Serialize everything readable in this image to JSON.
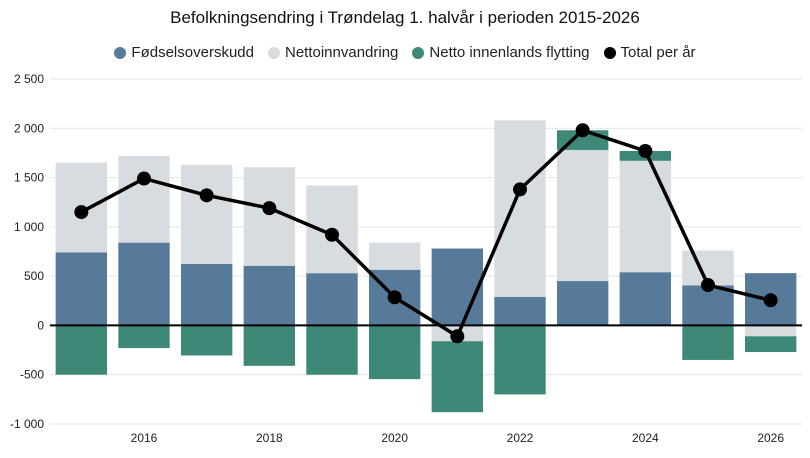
{
  "chart_data": {
    "type": "bar",
    "title": "Befolkningsendring i Trøndelag 1. halvår i perioden 2015-2026",
    "xlabel": "",
    "ylabel": "",
    "ylim": [
      -1000,
      2500
    ],
    "y_ticks": [
      2500,
      2000,
      1500,
      1000,
      500,
      0,
      -500,
      -1000
    ],
    "y_tick_labels": [
      "2 500",
      "2 000",
      "1 500",
      "1 000",
      "500",
      "0",
      "-500",
      "-1 000"
    ],
    "categories": [
      "2015",
      "2016",
      "2017",
      "2018",
      "2019",
      "2020",
      "2021",
      "2022",
      "2023",
      "2024",
      "2025",
      "2026"
    ],
    "x_tick_labels": [
      "",
      "2016",
      "",
      "2018",
      "",
      "2020",
      "",
      "2022",
      "",
      "2024",
      "",
      "2026"
    ],
    "stacked": true,
    "grid": true,
    "legend_position": "top",
    "series": [
      {
        "name": "Fødselsoverskudd",
        "type": "bar",
        "color": "#587a9a",
        "values": [
          740,
          840,
          625,
          605,
          530,
          565,
          780,
          290,
          450,
          540,
          405,
          530
        ]
      },
      {
        "name": "Nettoinnvandring",
        "type": "bar",
        "color": "#d7dce1",
        "values": [
          910,
          880,
          1005,
          1000,
          890,
          275,
          -160,
          1790,
          1330,
          1130,
          355,
          -110
        ]
      },
      {
        "name": "Netto innenlands flytting",
        "type": "bar",
        "color": "#3e8878",
        "values": [
          -500,
          -230,
          -305,
          -410,
          -500,
          -545,
          -720,
          -700,
          200,
          100,
          -350,
          -160
        ]
      },
      {
        "name": "Total per år",
        "type": "line",
        "color": "#000000",
        "values": [
          1150,
          1490,
          1320,
          1190,
          920,
          285,
          -110,
          1380,
          1980,
          1770,
          410,
          255
        ]
      }
    ]
  }
}
